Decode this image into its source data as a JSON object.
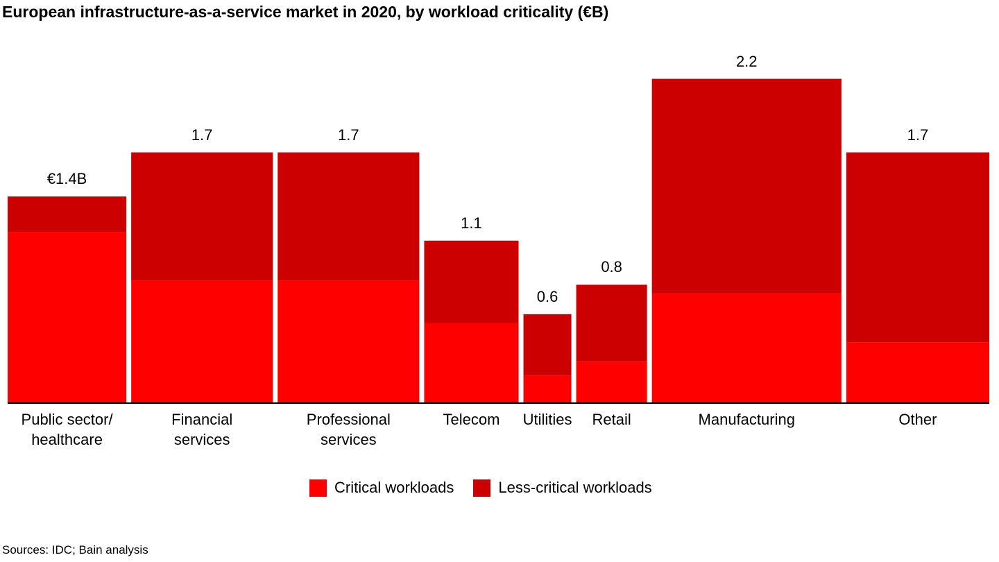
{
  "title": "European infrastructure-as-a-service market in 2020, by workload criticality (€B)",
  "source": "Sources: IDC; Bain analysis",
  "colors": {
    "critical": "#FF0000",
    "less_critical": "#CC0000"
  },
  "chart_data": {
    "type": "bar",
    "subtype": "marimekko-stacked",
    "title": "European infrastructure-as-a-service market in 2020, by workload criticality (€B)",
    "xlabel": "",
    "ylabel": "€B",
    "ylim": [
      0,
      2.2
    ],
    "grid": false,
    "legend_position": "bottom-center",
    "categories": [
      "Public sector/\nhealthcare",
      "Financial\nservices",
      "Professional\nservices",
      "Telecom",
      "Utilities",
      "Retail",
      "Manufacturing",
      "Other"
    ],
    "column_weights": [
      171,
      204,
      204,
      136,
      69,
      102,
      273,
      206
    ],
    "totals": [
      1.4,
      1.7,
      1.7,
      1.1,
      0.6,
      0.8,
      2.2,
      1.7
    ],
    "total_labels": [
      "€1.4B",
      "1.7",
      "1.7",
      "1.1",
      "0.6",
      "0.8",
      "2.2",
      "1.7"
    ],
    "series": [
      {
        "name": "Critical workloads",
        "values": [
          1.16,
          0.83,
          0.83,
          0.54,
          0.18,
          0.28,
          0.74,
          0.41
        ]
      },
      {
        "name": "Less-critical workloads",
        "values": [
          0.24,
          0.87,
          0.87,
          0.56,
          0.42,
          0.52,
          1.46,
          1.29
        ]
      }
    ]
  }
}
